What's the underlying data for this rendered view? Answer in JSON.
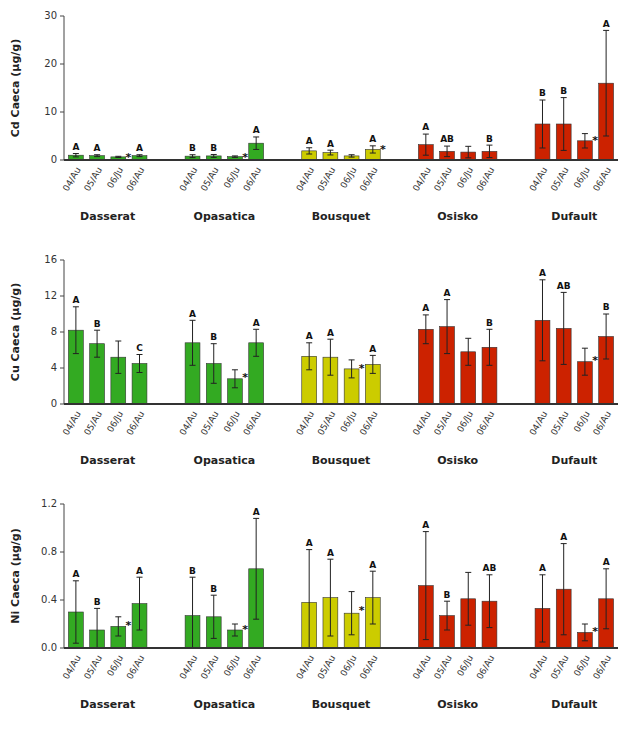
{
  "chart_data": [
    {
      "type": "bar",
      "ylabel": "Cd Caeca (μg/g)",
      "ylim": [
        0,
        30
      ],
      "yticks": [
        0,
        10,
        20,
        30
      ],
      "grid": false,
      "categories": [
        "04/Au",
        "05/Au",
        "06/Ju",
        "06/Au"
      ],
      "series": [
        {
          "name": "Dasserat",
          "color": "#33aa22",
          "values": [
            1.0,
            0.9,
            0.65,
            0.9
          ],
          "errors": [
            0.35,
            0.2,
            0.12,
            0.2
          ],
          "annotations": [
            "A",
            "A",
            null,
            "A"
          ],
          "stars": [
            null,
            null,
            "*",
            null
          ]
        },
        {
          "name": "Opasatica",
          "color": "#33aa22",
          "values": [
            0.8,
            0.85,
            0.7,
            3.5
          ],
          "errors": [
            0.3,
            0.3,
            0.15,
            1.3
          ],
          "annotations": [
            "B",
            "B",
            null,
            "A"
          ],
          "stars": [
            null,
            null,
            "*",
            null
          ]
        },
        {
          "name": "Bousquet",
          "color": "#cccc00",
          "values": [
            1.9,
            1.55,
            0.85,
            2.2
          ],
          "errors": [
            0.65,
            0.5,
            0.25,
            0.75
          ],
          "annotations": [
            "A",
            "A",
            null,
            "A"
          ],
          "stars": [
            null,
            null,
            null,
            "*"
          ]
        },
        {
          "name": "Osisko",
          "color": "#cc2200",
          "values": [
            3.2,
            1.8,
            1.65,
            1.8
          ],
          "errors": [
            2.2,
            1.1,
            1.2,
            1.3
          ],
          "annotations": [
            "A",
            "AB",
            null,
            "B"
          ],
          "stars": [
            null,
            null,
            null,
            null
          ]
        },
        {
          "name": "Dufault",
          "color": "#cc2200",
          "values": [
            7.5,
            7.5,
            4.0,
            16.0
          ],
          "errors": [
            5.0,
            5.5,
            1.5,
            11.0
          ],
          "annotations": [
            "B",
            "B",
            null,
            "A"
          ],
          "stars": [
            null,
            null,
            "*",
            null
          ]
        }
      ]
    },
    {
      "type": "bar",
      "ylabel": "Cu Caeca (μg/g)",
      "ylim": [
        0,
        16
      ],
      "yticks": [
        0,
        4,
        8,
        12,
        16
      ],
      "grid": false,
      "categories": [
        "04/Au",
        "05/Au",
        "06/Ju",
        "06/Au"
      ],
      "series": [
        {
          "name": "Dasserat",
          "color": "#33aa22",
          "values": [
            8.2,
            6.7,
            5.2,
            4.5
          ],
          "errors": [
            2.6,
            1.5,
            1.8,
            1.0
          ],
          "annotations": [
            "A",
            "B",
            null,
            "C"
          ],
          "stars": [
            null,
            null,
            null,
            null
          ]
        },
        {
          "name": "Opasatica",
          "color": "#33aa22",
          "values": [
            6.8,
            4.5,
            2.8,
            6.8
          ],
          "errors": [
            2.5,
            2.2,
            1.0,
            1.5
          ],
          "annotations": [
            "A",
            "B",
            null,
            "A"
          ],
          "stars": [
            null,
            null,
            "*",
            null
          ]
        },
        {
          "name": "Bousquet",
          "color": "#cccc00",
          "values": [
            5.3,
            5.2,
            3.9,
            4.4
          ],
          "errors": [
            1.5,
            2.0,
            1.0,
            1.0
          ],
          "annotations": [
            "A",
            "A",
            null,
            "A"
          ],
          "stars": [
            null,
            null,
            "*",
            null
          ]
        },
        {
          "name": "Osisko",
          "color": "#cc2200",
          "values": [
            8.3,
            8.6,
            5.8,
            6.3
          ],
          "errors": [
            1.6,
            3.0,
            1.5,
            2.0
          ],
          "annotations": [
            "A",
            "A",
            null,
            "B"
          ],
          "stars": [
            null,
            null,
            null,
            null
          ]
        },
        {
          "name": "Dufault",
          "color": "#cc2200",
          "values": [
            9.3,
            8.4,
            4.7,
            7.5
          ],
          "errors": [
            4.5,
            4.0,
            1.5,
            2.5
          ],
          "annotations": [
            "A",
            "AB",
            null,
            "B"
          ],
          "stars": [
            null,
            null,
            "*",
            null
          ]
        }
      ]
    },
    {
      "type": "bar",
      "ylabel": "Ni Caeca (μg/g)",
      "ylim": [
        0,
        1.2
      ],
      "yticks": [
        {
          "value": 0,
          "label": "0.0"
        },
        0.4,
        0.8,
        1.2
      ],
      "grid": false,
      "categories": [
        "04/Au",
        "05/Au",
        "06/Ju",
        "06/Au"
      ],
      "series": [
        {
          "name": "Dasserat",
          "color": "#33aa22",
          "values": [
            0.3,
            0.15,
            0.18,
            0.37
          ],
          "errors": [
            0.26,
            0.18,
            0.08,
            0.22
          ],
          "annotations": [
            "A",
            "B",
            null,
            "A"
          ],
          "stars": [
            null,
            null,
            "*",
            null
          ]
        },
        {
          "name": "Opasatica",
          "color": "#33aa22",
          "values": [
            0.27,
            0.26,
            0.15,
            0.66
          ],
          "errors": [
            0.32,
            0.18,
            0.05,
            0.42
          ],
          "annotations": [
            "B",
            "B",
            null,
            "A"
          ],
          "stars": [
            null,
            null,
            "*",
            null
          ]
        },
        {
          "name": "Bousquet",
          "color": "#cccc00",
          "values": [
            0.38,
            0.42,
            0.29,
            0.42
          ],
          "errors": [
            0.44,
            0.32,
            0.18,
            0.22
          ],
          "annotations": [
            "A",
            "A",
            null,
            "A"
          ],
          "stars": [
            null,
            null,
            "*",
            null
          ]
        },
        {
          "name": "Osisko",
          "color": "#cc2200",
          "values": [
            0.52,
            0.27,
            0.41,
            0.39
          ],
          "errors": [
            0.45,
            0.12,
            0.22,
            0.22
          ],
          "annotations": [
            "A",
            "B",
            null,
            "AB"
          ],
          "stars": [
            null,
            null,
            null,
            null
          ]
        },
        {
          "name": "Dufault",
          "color": "#cc2200",
          "values": [
            0.33,
            0.49,
            0.13,
            0.41
          ],
          "errors": [
            0.28,
            0.38,
            0.07,
            0.25
          ],
          "annotations": [
            "A",
            "A",
            null,
            "A"
          ],
          "stars": [
            null,
            null,
            "*",
            null
          ]
        }
      ]
    }
  ]
}
